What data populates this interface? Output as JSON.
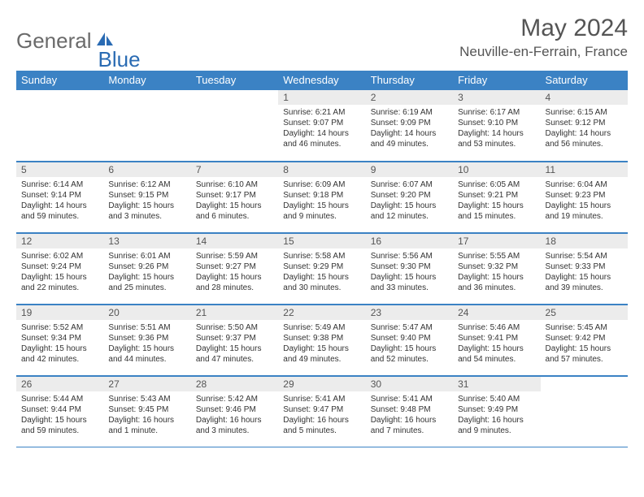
{
  "brand": {
    "general": "General",
    "blue": "Blue"
  },
  "title": "May 2024",
  "location": "Neuville-en-Ferrain, France",
  "colors": {
    "header_bg": "#3b82c4",
    "header_text": "#ffffff",
    "daynum_bg": "#ececec",
    "rule": "#3b82c4",
    "logo_gray": "#6a6a6a",
    "logo_blue": "#2a6bb3",
    "text": "#333333",
    "title_gray": "#555555"
  },
  "weekdays": [
    "Sunday",
    "Monday",
    "Tuesday",
    "Wednesday",
    "Thursday",
    "Friday",
    "Saturday"
  ],
  "weeks": [
    [
      null,
      null,
      null,
      {
        "n": "1",
        "sr": "6:21 AM",
        "ss": "9:07 PM",
        "dl": "14 hours and 46 minutes."
      },
      {
        "n": "2",
        "sr": "6:19 AM",
        "ss": "9:09 PM",
        "dl": "14 hours and 49 minutes."
      },
      {
        "n": "3",
        "sr": "6:17 AM",
        "ss": "9:10 PM",
        "dl": "14 hours and 53 minutes."
      },
      {
        "n": "4",
        "sr": "6:15 AM",
        "ss": "9:12 PM",
        "dl": "14 hours and 56 minutes."
      }
    ],
    [
      {
        "n": "5",
        "sr": "6:14 AM",
        "ss": "9:14 PM",
        "dl": "14 hours and 59 minutes."
      },
      {
        "n": "6",
        "sr": "6:12 AM",
        "ss": "9:15 PM",
        "dl": "15 hours and 3 minutes."
      },
      {
        "n": "7",
        "sr": "6:10 AM",
        "ss": "9:17 PM",
        "dl": "15 hours and 6 minutes."
      },
      {
        "n": "8",
        "sr": "6:09 AM",
        "ss": "9:18 PM",
        "dl": "15 hours and 9 minutes."
      },
      {
        "n": "9",
        "sr": "6:07 AM",
        "ss": "9:20 PM",
        "dl": "15 hours and 12 minutes."
      },
      {
        "n": "10",
        "sr": "6:05 AM",
        "ss": "9:21 PM",
        "dl": "15 hours and 15 minutes."
      },
      {
        "n": "11",
        "sr": "6:04 AM",
        "ss": "9:23 PM",
        "dl": "15 hours and 19 minutes."
      }
    ],
    [
      {
        "n": "12",
        "sr": "6:02 AM",
        "ss": "9:24 PM",
        "dl": "15 hours and 22 minutes."
      },
      {
        "n": "13",
        "sr": "6:01 AM",
        "ss": "9:26 PM",
        "dl": "15 hours and 25 minutes."
      },
      {
        "n": "14",
        "sr": "5:59 AM",
        "ss": "9:27 PM",
        "dl": "15 hours and 28 minutes."
      },
      {
        "n": "15",
        "sr": "5:58 AM",
        "ss": "9:29 PM",
        "dl": "15 hours and 30 minutes."
      },
      {
        "n": "16",
        "sr": "5:56 AM",
        "ss": "9:30 PM",
        "dl": "15 hours and 33 minutes."
      },
      {
        "n": "17",
        "sr": "5:55 AM",
        "ss": "9:32 PM",
        "dl": "15 hours and 36 minutes."
      },
      {
        "n": "18",
        "sr": "5:54 AM",
        "ss": "9:33 PM",
        "dl": "15 hours and 39 minutes."
      }
    ],
    [
      {
        "n": "19",
        "sr": "5:52 AM",
        "ss": "9:34 PM",
        "dl": "15 hours and 42 minutes."
      },
      {
        "n": "20",
        "sr": "5:51 AM",
        "ss": "9:36 PM",
        "dl": "15 hours and 44 minutes."
      },
      {
        "n": "21",
        "sr": "5:50 AM",
        "ss": "9:37 PM",
        "dl": "15 hours and 47 minutes."
      },
      {
        "n": "22",
        "sr": "5:49 AM",
        "ss": "9:38 PM",
        "dl": "15 hours and 49 minutes."
      },
      {
        "n": "23",
        "sr": "5:47 AM",
        "ss": "9:40 PM",
        "dl": "15 hours and 52 minutes."
      },
      {
        "n": "24",
        "sr": "5:46 AM",
        "ss": "9:41 PM",
        "dl": "15 hours and 54 minutes."
      },
      {
        "n": "25",
        "sr": "5:45 AM",
        "ss": "9:42 PM",
        "dl": "15 hours and 57 minutes."
      }
    ],
    [
      {
        "n": "26",
        "sr": "5:44 AM",
        "ss": "9:44 PM",
        "dl": "15 hours and 59 minutes."
      },
      {
        "n": "27",
        "sr": "5:43 AM",
        "ss": "9:45 PM",
        "dl": "16 hours and 1 minute."
      },
      {
        "n": "28",
        "sr": "5:42 AM",
        "ss": "9:46 PM",
        "dl": "16 hours and 3 minutes."
      },
      {
        "n": "29",
        "sr": "5:41 AM",
        "ss": "9:47 PM",
        "dl": "16 hours and 5 minutes."
      },
      {
        "n": "30",
        "sr": "5:41 AM",
        "ss": "9:48 PM",
        "dl": "16 hours and 7 minutes."
      },
      {
        "n": "31",
        "sr": "5:40 AM",
        "ss": "9:49 PM",
        "dl": "16 hours and 9 minutes."
      },
      null
    ]
  ],
  "labels": {
    "sunrise": "Sunrise:",
    "sunset": "Sunset:",
    "daylight": "Daylight:"
  }
}
